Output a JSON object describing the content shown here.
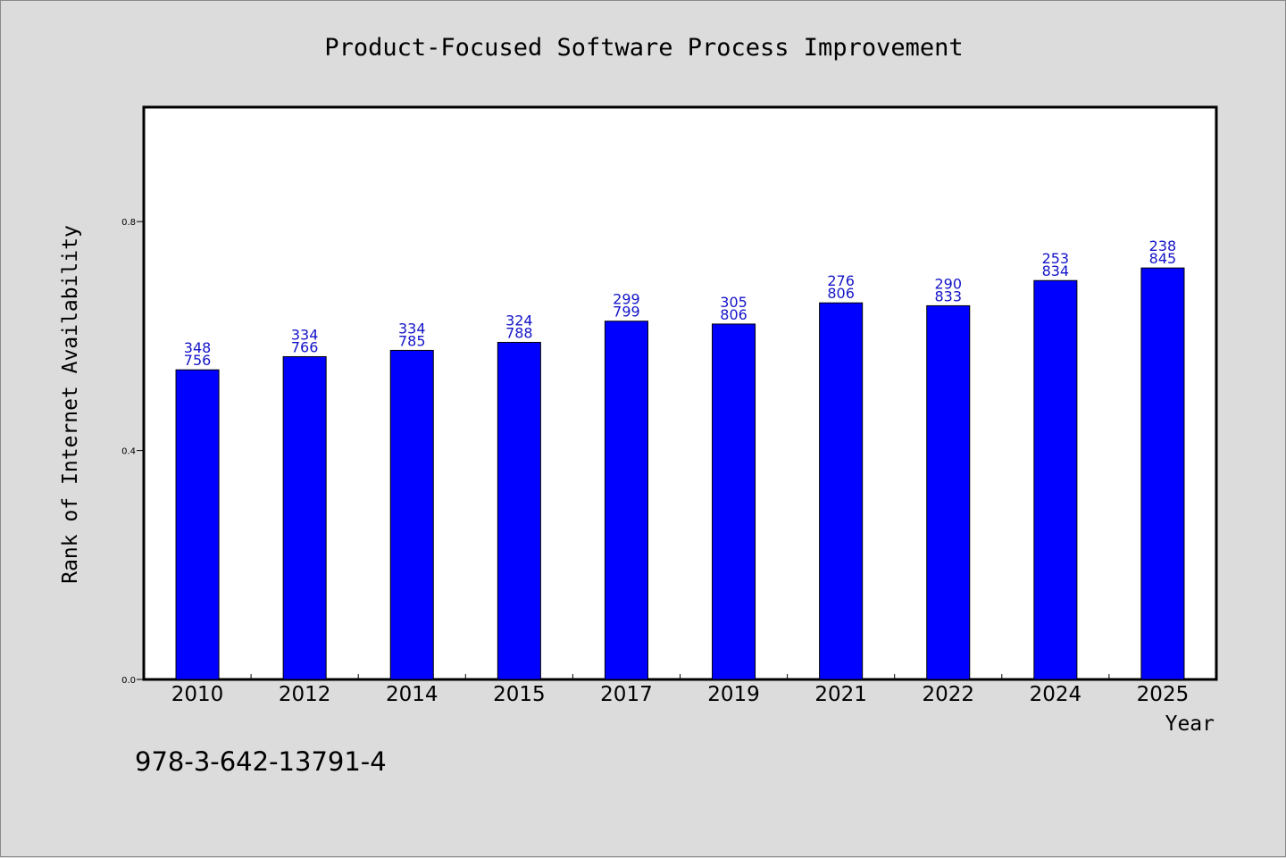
{
  "chart_data": {
    "type": "bar",
    "title": "Product-Focused Software Process Improvement",
    "xlabel": "Year",
    "ylabel": "Rank of Internet Availability",
    "ylim": [
      0,
      1.0
    ],
    "yticks": [
      "0.0",
      "0.4",
      "0.8"
    ],
    "grid": false,
    "categories": [
      "2010",
      "2012",
      "2014",
      "2015",
      "2017",
      "2019",
      "2021",
      "2022",
      "2024",
      "2025"
    ],
    "values": [
      0.541,
      0.564,
      0.575,
      0.589,
      0.626,
      0.621,
      0.658,
      0.653,
      0.697,
      0.719
    ],
    "bar_labels": [
      [
        "348",
        "756"
      ],
      [
        "334",
        "766"
      ],
      [
        "334",
        "785"
      ],
      [
        "324",
        "788"
      ],
      [
        "299",
        "799"
      ],
      [
        "305",
        "806"
      ],
      [
        "276",
        "806"
      ],
      [
        "290",
        "833"
      ],
      [
        "253",
        "834"
      ],
      [
        "238",
        "845"
      ]
    ],
    "colors": {
      "bar": "#0000ff",
      "bar_label": "#1414c8",
      "plot_bg": "#ffffff",
      "page_bg": "#dcdcdc"
    }
  },
  "annotation": "978-3-642-13791-4"
}
